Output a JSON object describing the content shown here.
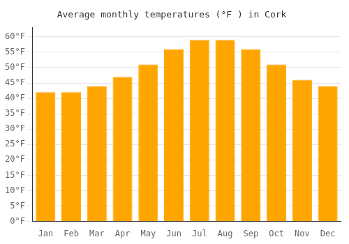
{
  "chart_data": {
    "type": "bar",
    "title": "Average monthly temperatures (°F ) in Cork",
    "categories": [
      "Jan",
      "Feb",
      "Mar",
      "Apr",
      "May",
      "Jun",
      "Jul",
      "Aug",
      "Sep",
      "Oct",
      "Nov",
      "Dec"
    ],
    "values": [
      42,
      42,
      44,
      47,
      51,
      56,
      59,
      59,
      56,
      51,
      46,
      44
    ],
    "color": "#FFA500",
    "ylim": [
      0,
      63
    ],
    "yticks": [
      {
        "value": 0,
        "label": "0°F"
      },
      {
        "value": 5,
        "label": "5°F"
      },
      {
        "value": 10,
        "label": "10°F"
      },
      {
        "value": 15,
        "label": "15°F"
      },
      {
        "value": 20,
        "label": "20°F"
      },
      {
        "value": 25,
        "label": "25°F"
      },
      {
        "value": 30,
        "label": "30°F"
      },
      {
        "value": 35,
        "label": "35°F"
      },
      {
        "value": 40,
        "label": "40°F"
      },
      {
        "value": 45,
        "label": "45°F"
      },
      {
        "value": 50,
        "label": "50°F"
      },
      {
        "value": 55,
        "label": "55°F"
      },
      {
        "value": 60,
        "label": "60°F"
      }
    ],
    "grid": true
  }
}
